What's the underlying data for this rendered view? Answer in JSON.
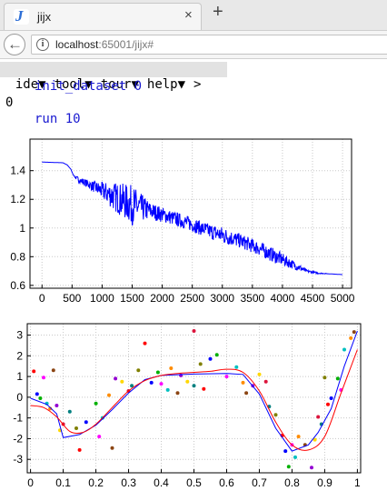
{
  "browser": {
    "tab_title": "jijx",
    "tab_icon_letter": "J",
    "close_glyph": "×",
    "new_tab_glyph": "+",
    "url_host": "localhost",
    "url_rest": ":65001/jijx#"
  },
  "menu": {
    "items": [
      "ide▼",
      "tool▼",
      "tour▼",
      "help▼",
      ">"
    ]
  },
  "session": {
    "cmd1": "init_dataset 0",
    "out1": "0",
    "cmd2": "run 10"
  },
  "colors": {
    "series_blue": "#0000ff",
    "series_red": "#ff0000",
    "command_blue": "#1a1ad0"
  },
  "chart_data": [
    {
      "type": "line",
      "title": "",
      "xlabel": "",
      "ylabel": "",
      "xlim": [
        -200,
        5150
      ],
      "ylim": [
        0.58,
        1.62
      ],
      "xticks": [
        0,
        500,
        1000,
        1500,
        2000,
        2500,
        3000,
        3500,
        4000,
        4500,
        5000
      ],
      "yticks": [
        0.6,
        0.8,
        1,
        1.2,
        1.4
      ],
      "grid": true,
      "series": [
        {
          "color": "#0000ff",
          "x": [
            0,
            350,
            420,
            480,
            520,
            560,
            600,
            800,
            1000,
            1200,
            1500,
            1800,
            2100,
            2400,
            2700,
            3000,
            3300,
            3600,
            3900,
            4200,
            4400,
            4600,
            4800,
            5000
          ],
          "y": [
            1.46,
            1.455,
            1.44,
            1.41,
            1.37,
            1.35,
            1.34,
            1.3,
            1.26,
            1.22,
            1.16,
            1.12,
            1.08,
            1.04,
            0.99,
            0.95,
            0.91,
            0.86,
            0.8,
            0.74,
            0.7,
            0.685,
            0.68,
            0.675
          ],
          "noise": [
            0,
            0,
            0,
            0,
            0,
            0.01,
            0.02,
            0.03,
            0.06,
            0.1,
            0.14,
            0.06,
            0.05,
            0.05,
            0.05,
            0.06,
            0.05,
            0.05,
            0.05,
            0.03,
            0.01,
            0.005,
            0,
            0
          ]
        }
      ]
    },
    {
      "type": "scatter",
      "title": "",
      "xlabel": "",
      "ylabel": "",
      "xlim": [
        -0.01,
        1.01
      ],
      "ylim": [
        -3.65,
        3.55
      ],
      "xticks": [
        0,
        0.1,
        0.2,
        0.3,
        0.4,
        0.5,
        0.6,
        0.7,
        0.8,
        0.9,
        1
      ],
      "yticks": [
        -3,
        -2,
        -1,
        0,
        1,
        2,
        3
      ],
      "grid": true,
      "lines": [
        {
          "color": "#0000ff",
          "x": [
            0,
            0.05,
            0.08,
            0.1,
            0.15,
            0.2,
            0.25,
            0.3,
            0.35,
            0.4,
            0.5,
            0.6,
            0.65,
            0.7,
            0.75,
            0.8,
            0.85,
            0.88,
            0.92,
            0.96,
            1.0
          ],
          "y": [
            -0.05,
            -0.35,
            -0.8,
            -1.95,
            -1.8,
            -1.35,
            -0.6,
            0.2,
            0.85,
            1.05,
            1.12,
            1.15,
            1.1,
            0.15,
            -1.5,
            -2.6,
            -2.3,
            -1.7,
            -0.55,
            1.5,
            3.2
          ]
        },
        {
          "color": "#ff0000",
          "x": [
            0,
            0.04,
            0.08,
            0.12,
            0.16,
            0.2,
            0.25,
            0.3,
            0.35,
            0.4,
            0.45,
            0.5,
            0.55,
            0.6,
            0.65,
            0.7,
            0.75,
            0.8,
            0.85,
            0.9,
            0.95,
            1.0
          ],
          "y": [
            -0.4,
            -0.5,
            -0.95,
            -1.65,
            -1.7,
            -1.3,
            -0.5,
            0.3,
            0.8,
            1.05,
            1.15,
            1.2,
            1.25,
            1.35,
            1.2,
            0.3,
            -1.2,
            -2.3,
            -2.55,
            -1.9,
            0.2,
            2.3
          ]
        }
      ],
      "points": [
        [
          0.01,
          1.25
        ],
        [
          0.02,
          0.15
        ],
        [
          0.03,
          -0.05
        ],
        [
          0.04,
          0.95
        ],
        [
          0.05,
          -0.3
        ],
        [
          0.06,
          -0.55
        ],
        [
          0.07,
          1.3
        ],
        [
          0.08,
          -0.4
        ],
        [
          0.09,
          -1.6
        ],
        [
          0.1,
          -1.3
        ],
        [
          0.12,
          -0.7
        ],
        [
          0.14,
          -1.5
        ],
        [
          0.15,
          -2.55
        ],
        [
          0.17,
          -1.2
        ],
        [
          0.2,
          -0.3
        ],
        [
          0.21,
          -1.9
        ],
        [
          0.22,
          -1.0
        ],
        [
          0.24,
          0.1
        ],
        [
          0.25,
          -2.45
        ],
        [
          0.26,
          0.9
        ],
        [
          0.28,
          0.75
        ],
        [
          0.3,
          0.3
        ],
        [
          0.31,
          0.55
        ],
        [
          0.33,
          1.3
        ],
        [
          0.35,
          2.6
        ],
        [
          0.37,
          0.7
        ],
        [
          0.39,
          1.2
        ],
        [
          0.4,
          0.65
        ],
        [
          0.42,
          0.35
        ],
        [
          0.43,
          1.4
        ],
        [
          0.45,
          0.2
        ],
        [
          0.46,
          1.05
        ],
        [
          0.48,
          0.75
        ],
        [
          0.5,
          3.2
        ],
        [
          0.5,
          0.55
        ],
        [
          0.52,
          1.6
        ],
        [
          0.53,
          0.4
        ],
        [
          0.55,
          1.85
        ],
        [
          0.57,
          2.05
        ],
        [
          0.6,
          1.0
        ],
        [
          0.63,
          1.45
        ],
        [
          0.65,
          0.7
        ],
        [
          0.66,
          0.2
        ],
        [
          0.68,
          0.55
        ],
        [
          0.7,
          1.1
        ],
        [
          0.72,
          0.75
        ],
        [
          0.73,
          -0.45
        ],
        [
          0.75,
          -0.85
        ],
        [
          0.77,
          -1.85
        ],
        [
          0.78,
          -2.6
        ],
        [
          0.79,
          -3.35
        ],
        [
          0.8,
          -2.3
        ],
        [
          0.81,
          -2.9
        ],
        [
          0.82,
          -1.9
        ],
        [
          0.84,
          -2.3
        ],
        [
          0.86,
          -3.4
        ],
        [
          0.87,
          -2.05
        ],
        [
          0.88,
          -0.95
        ],
        [
          0.89,
          -1.3
        ],
        [
          0.9,
          0.95
        ],
        [
          0.91,
          -0.35
        ],
        [
          0.92,
          -0.05
        ],
        [
          0.94,
          0.9
        ],
        [
          0.95,
          0.35
        ],
        [
          0.96,
          2.3
        ],
        [
          0.98,
          2.85
        ],
        [
          0.99,
          3.15
        ]
      ],
      "point_colors": [
        "#ff0000",
        "#0000ff",
        "#00b000",
        "#ff00ff",
        "#00c0c0",
        "#ff8c00",
        "#8b4513",
        "#9400d3",
        "#ffd700",
        "#dc143c",
        "#008080",
        "#808000"
      ]
    }
  ]
}
